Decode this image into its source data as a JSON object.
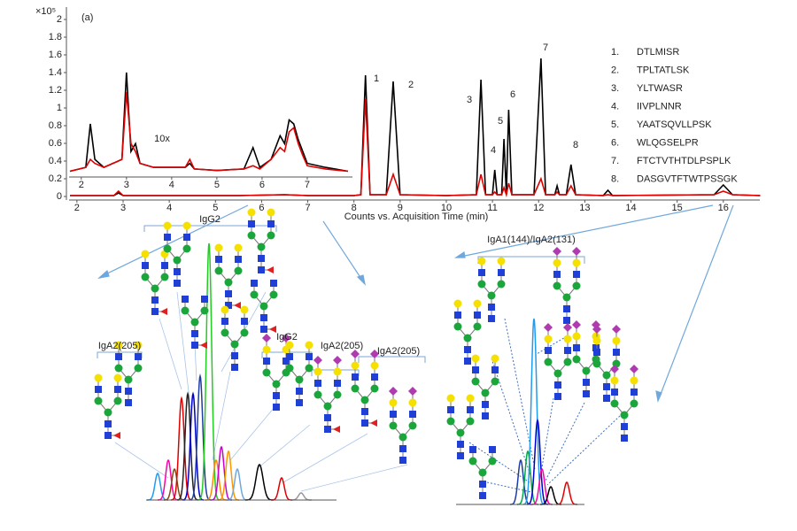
{
  "chart_data": [
    {
      "type": "line",
      "title": "(a)",
      "ylabel": "×10⁵",
      "xlabel": "Counts vs. Acquisition Time (min)",
      "xlim": [
        1.83,
        16.79
      ],
      "ylim": [
        -0.04,
        2.14
      ],
      "xticks": [
        2,
        3,
        4,
        5,
        6,
        7,
        8,
        9,
        10,
        11,
        12,
        13,
        14,
        15,
        16
      ],
      "yticks": [
        0,
        0.2,
        0.4,
        0.6,
        0.8,
        1,
        1.2,
        1.4,
        1.6,
        1.8,
        2
      ],
      "x": [
        1.85,
        2.8,
        2.9,
        3.0,
        4.0,
        5.5,
        6.5,
        7.0,
        8.0,
        8.15,
        8.25,
        8.35,
        8.7,
        8.85,
        9.0,
        10.0,
        10.65,
        10.75,
        10.85,
        11.0,
        11.05,
        11.1,
        11.2,
        11.25,
        11.3,
        11.35,
        11.42,
        11.9,
        12.05,
        12.15,
        12.35,
        12.4,
        12.45,
        12.6,
        12.7,
        12.8,
        13.4,
        13.5,
        13.6,
        15.8,
        16.0,
        16.2,
        16.8
      ],
      "series": [
        {
          "color": "#000000",
          "values": [
            0.01,
            0.01,
            0.04,
            0.01,
            0.01,
            0.01,
            0.02,
            0.01,
            0.01,
            0.02,
            1.37,
            0.02,
            0.02,
            1.3,
            0.02,
            0.01,
            0.02,
            1.32,
            0.02,
            0.02,
            0.3,
            0.02,
            0.02,
            0.65,
            0.02,
            0.98,
            0.02,
            0.02,
            1.56,
            0.02,
            0.02,
            0.12,
            0.02,
            0.02,
            0.36,
            0.02,
            0.01,
            0.07,
            0.01,
            0.02,
            0.13,
            0.02,
            0.01
          ]
        },
        {
          "color": "#e00000",
          "values": [
            0.01,
            0.01,
            0.06,
            0.01,
            0.01,
            0.01,
            0.02,
            0.01,
            0.01,
            0.02,
            1.1,
            0.02,
            0.02,
            0.25,
            0.02,
            0.01,
            0.02,
            0.25,
            0.02,
            0.02,
            0.05,
            0.02,
            0.02,
            0.1,
            0.02,
            0.15,
            0.02,
            0.02,
            0.2,
            0.02,
            0.02,
            0.05,
            0.02,
            0.02,
            0.12,
            0.02,
            0.01,
            0.02,
            0.01,
            0.02,
            0.06,
            0.02,
            0.01
          ]
        }
      ],
      "annotations": [
        "1",
        "2",
        "3",
        "4",
        "5",
        "6",
        "7",
        "8"
      ]
    },
    {
      "type": "line",
      "annotation": "10x",
      "xlim": [
        1.73,
        8.0
      ],
      "ylim": [
        0,
        0.14
      ],
      "xticks": [
        2,
        3,
        4,
        5,
        6,
        7
      ],
      "x": [
        1.75,
        2.1,
        2.2,
        2.3,
        2.5,
        2.9,
        3.0,
        3.1,
        3.2,
        3.3,
        3.6,
        4.3,
        4.4,
        4.5,
        5.0,
        5.6,
        5.8,
        5.95,
        6.2,
        6.4,
        6.5,
        6.6,
        6.7,
        6.8,
        6.9,
        7.0,
        7.4,
        7.9
      ],
      "series": [
        {
          "color": "#000000",
          "values": [
            0.005,
            0.01,
            0.065,
            0.02,
            0.01,
            0.02,
            0.13,
            0.03,
            0.04,
            0.015,
            0.01,
            0.01,
            0.015,
            0.008,
            0.006,
            0.008,
            0.035,
            0.01,
            0.02,
            0.05,
            0.04,
            0.07,
            0.065,
            0.045,
            0.03,
            0.015,
            0.01,
            0.005
          ]
        },
        {
          "color": "#e00000",
          "values": [
            0.005,
            0.01,
            0.02,
            0.015,
            0.01,
            0.02,
            0.105,
            0.04,
            0.03,
            0.015,
            0.01,
            0.01,
            0.02,
            0.008,
            0.006,
            0.008,
            0.012,
            0.008,
            0.02,
            0.035,
            0.03,
            0.055,
            0.06,
            0.04,
            0.025,
            0.012,
            0.008,
            0.005
          ]
        }
      ]
    }
  ],
  "peptides": [
    {
      "number": "1.",
      "sequence": "DTLMISR"
    },
    {
      "number": "2.",
      "sequence": "TPLTATLSK"
    },
    {
      "number": "3.",
      "sequence": "YLTWASR"
    },
    {
      "number": "4.",
      "sequence": "IIVPLNNR"
    },
    {
      "number": "5.",
      "sequence": "YAATSQVLLPSK"
    },
    {
      "number": "6.",
      "sequence": "WLQGSELPR"
    },
    {
      "number": "7.",
      "sequence": "FTCTVTHTDLPSPLK"
    },
    {
      "number": "8.",
      "sequence": "DASGVTFTWTPSSGK"
    }
  ],
  "groups": [
    "IgG2",
    "IgA2(205)",
    "IgG2",
    "IgA2(205)",
    "IgA2(205)",
    "IgA1(144)/IgA2(131)"
  ]
}
